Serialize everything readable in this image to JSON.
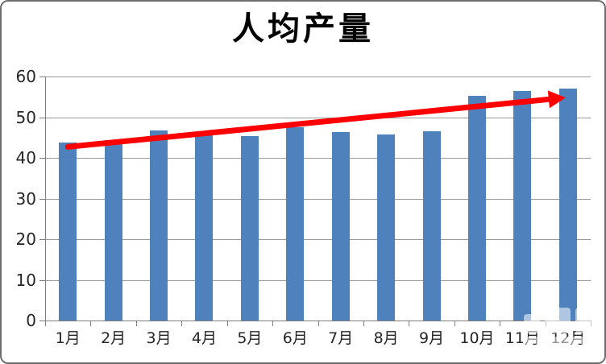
{
  "chart_data": {
    "type": "bar",
    "title": "人均产量",
    "xlabel": "",
    "ylabel": "",
    "categories": [
      "1月",
      "2月",
      "3月",
      "4月",
      "5月",
      "6月",
      "7月",
      "8月",
      "9月",
      "10月",
      "11月",
      "12月"
    ],
    "values": [
      43.8,
      44.3,
      46.7,
      45.8,
      45.3,
      47.6,
      46.3,
      45.7,
      46.6,
      55.2,
      56.4,
      57.0
    ],
    "ylim": [
      0,
      60
    ],
    "y_ticks": [
      0,
      10,
      20,
      30,
      40,
      50,
      60
    ],
    "grid": true,
    "legend": false,
    "annotations": [
      {
        "type": "arrow",
        "from_category": "1月",
        "from_value": 42.7,
        "to_category": "12月",
        "to_value": 54.8,
        "color": "#FF0000"
      }
    ]
  },
  "colors": {
    "bar": "#4F81BD",
    "arrow": "#FF0000",
    "gridline": "#9A9A9A",
    "axis": "#7F7F7F",
    "text": "#262626",
    "title_text": "#000000",
    "border": "#6E6E6E",
    "background": "#FFFFFF"
  }
}
